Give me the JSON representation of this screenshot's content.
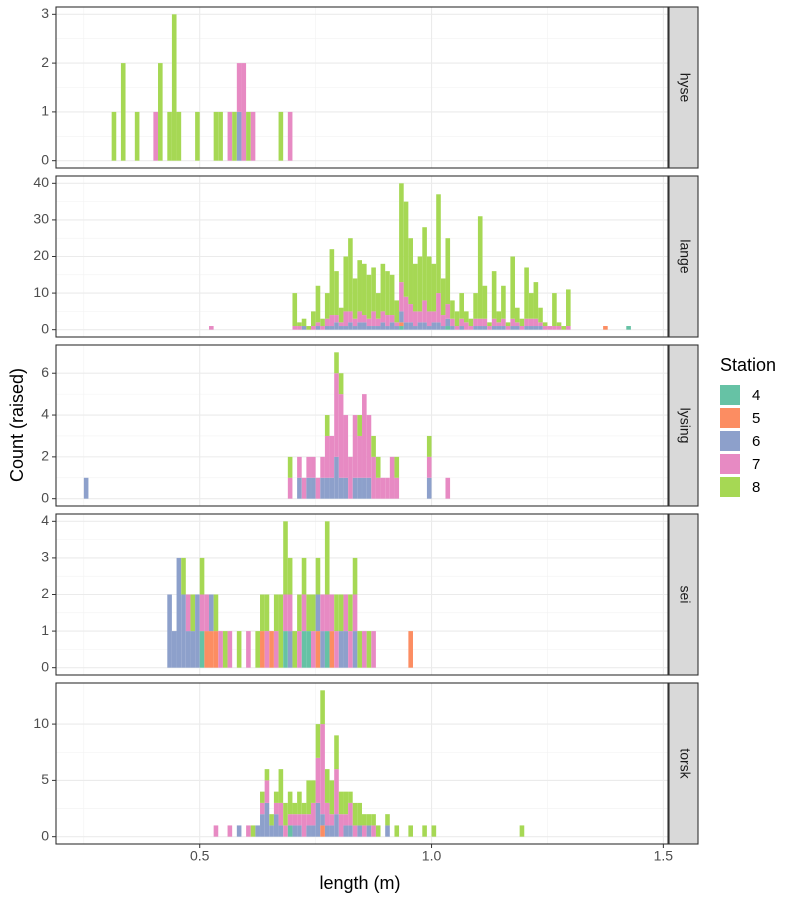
{
  "chart_data": {
    "type": "stacked-histogram",
    "x_label": "length (m)",
    "y_label": "Count (raised)",
    "legend_title": "Station",
    "legend_position": "right",
    "grid": true,
    "xlim": [
      0.19,
      1.51
    ],
    "xticks": [
      0.5,
      {
        "value": 1,
        "label": "1.0"
      },
      1.5
    ],
    "series": [
      {
        "name": "4",
        "color": "#66c2a5"
      },
      {
        "name": "5",
        "color": "#fc8d62"
      },
      {
        "name": "6",
        "color": "#8da0cb"
      },
      {
        "name": "7",
        "color": "#e78ac3"
      },
      {
        "name": "8",
        "color": "#a6d854"
      }
    ],
    "facets": [
      {
        "label": "hyse",
        "ylim": [
          -0.15,
          3.15
        ],
        "yticks": [
          0,
          1,
          2,
          3
        ],
        "x": [
          0.315,
          0.335,
          0.365,
          0.405,
          0.415,
          0.435,
          0.445,
          0.455,
          0.495,
          0.535,
          0.545,
          0.565,
          0.575,
          0.585,
          0.595,
          0.605,
          0.615,
          0.675,
          0.695
        ],
        "values": [
          [
            0,
            0,
            0,
            0,
            0,
            0,
            0,
            0,
            0,
            0,
            0,
            0,
            0,
            0,
            0,
            0,
            0,
            0,
            0
          ],
          [
            0,
            0,
            0,
            0,
            0,
            0,
            0,
            0,
            0,
            0,
            0,
            0,
            0,
            0,
            0,
            0,
            0,
            0,
            0
          ],
          [
            0,
            0,
            0,
            0,
            0,
            0,
            0,
            0,
            0,
            0,
            0,
            0,
            0,
            1,
            0,
            0,
            0,
            0,
            0
          ],
          [
            0,
            0,
            0,
            1,
            0,
            0,
            0,
            0,
            0,
            0,
            0,
            1,
            0,
            1,
            2,
            0,
            1,
            0,
            1
          ],
          [
            1,
            2,
            1,
            0,
            2,
            1,
            3,
            1,
            1,
            1,
            1,
            0,
            1,
            0,
            0,
            1,
            0,
            1,
            0
          ]
        ]
      },
      {
        "label": "lange",
        "ylim": [
          -2,
          42
        ],
        "yticks": [
          0,
          10,
          20,
          30,
          40
        ],
        "x": [
          0.525,
          0.705,
          0.715,
          0.725,
          0.735,
          0.745,
          0.755,
          0.765,
          0.775,
          0.785,
          0.795,
          0.805,
          0.815,
          0.825,
          0.835,
          0.845,
          0.855,
          0.865,
          0.875,
          0.885,
          0.895,
          0.905,
          0.915,
          0.925,
          0.935,
          0.945,
          0.955,
          0.965,
          0.975,
          0.985,
          0.995,
          1.005,
          1.015,
          1.025,
          1.035,
          1.045,
          1.055,
          1.065,
          1.075,
          1.085,
          1.095,
          1.105,
          1.115,
          1.125,
          1.135,
          1.145,
          1.155,
          1.165,
          1.175,
          1.185,
          1.195,
          1.205,
          1.215,
          1.225,
          1.235,
          1.245,
          1.255,
          1.265,
          1.275,
          1.285,
          1.295,
          1.375,
          1.425
        ],
        "values": [
          [
            0,
            0,
            0,
            0,
            0,
            0,
            0,
            0,
            0,
            0,
            0,
            0,
            0,
            0,
            0,
            0,
            0,
            0,
            0,
            0,
            0,
            0,
            0,
            0,
            1,
            0,
            0,
            0,
            0,
            0,
            0,
            0,
            0,
            0,
            1,
            0,
            0,
            0,
            0,
            0,
            0,
            0,
            0,
            0,
            0,
            0,
            0,
            0,
            0,
            0,
            0,
            0,
            0,
            0,
            0,
            0,
            0,
            0,
            0,
            0,
            0,
            0,
            1
          ],
          [
            0,
            0,
            0,
            0,
            0,
            0,
            0,
            0,
            0,
            0,
            0,
            0,
            0,
            0,
            0,
            0,
            0,
            0,
            0,
            0,
            0,
            0,
            0,
            0,
            1,
            0,
            0,
            0,
            0,
            0,
            0,
            0,
            0,
            0,
            0,
            0,
            0,
            0,
            0,
            0,
            0,
            0,
            0,
            0,
            0,
            0,
            0,
            0,
            0,
            0,
            0,
            0,
            0,
            0,
            0,
            0,
            0,
            0,
            0,
            0,
            0,
            1,
            0
          ],
          [
            0,
            0,
            0,
            1,
            0,
            0,
            1,
            0,
            1,
            1,
            2,
            1,
            1,
            2,
            1,
            2,
            2,
            1,
            1,
            1,
            2,
            1,
            2,
            1,
            3,
            2,
            2,
            1,
            2,
            2,
            1,
            2,
            2,
            1,
            2,
            1,
            0,
            1,
            0,
            0,
            1,
            1,
            1,
            0,
            1,
            1,
            1,
            0,
            1,
            1,
            0,
            1,
            1,
            1,
            1,
            0,
            0,
            0,
            0,
            0,
            0,
            0,
            0
          ],
          [
            1,
            1,
            1,
            0,
            0,
            1,
            1,
            1,
            2,
            3,
            2,
            1,
            4,
            3,
            2,
            3,
            2,
            2,
            4,
            2,
            3,
            3,
            2,
            1,
            8,
            7,
            5,
            4,
            3,
            6,
            4,
            3,
            8,
            3,
            4,
            2,
            1,
            2,
            2,
            1,
            2,
            2,
            2,
            1,
            2,
            1,
            2,
            1,
            2,
            1,
            1,
            2,
            2,
            2,
            1,
            1,
            1,
            1,
            1,
            0,
            1,
            0,
            0
          ],
          [
            0,
            9,
            1,
            2,
            1,
            4,
            10,
            2,
            7,
            18,
            12,
            4,
            15,
            20,
            11,
            14,
            14,
            12,
            12,
            7,
            13,
            12,
            11,
            6,
            27,
            26,
            18,
            13,
            15,
            20,
            15,
            13,
            27,
            10,
            18,
            5,
            4,
            7,
            3,
            2,
            7,
            28,
            9,
            1,
            13,
            3,
            9,
            1,
            17,
            4,
            2,
            14,
            7,
            10,
            4,
            1,
            0,
            9,
            1,
            1,
            10,
            0,
            0
          ]
        ]
      },
      {
        "label": "lysing",
        "ylim": [
          -0.35,
          7.35
        ],
        "yticks": [
          0,
          2,
          4,
          6
        ],
        "x": [
          0.255,
          0.695,
          0.715,
          0.725,
          0.735,
          0.745,
          0.755,
          0.765,
          0.775,
          0.785,
          0.795,
          0.805,
          0.815,
          0.825,
          0.835,
          0.845,
          0.855,
          0.865,
          0.875,
          0.885,
          0.895,
          0.905,
          0.915,
          0.925,
          0.995,
          1.035
        ],
        "values": [
          [
            0,
            0,
            0,
            0,
            0,
            0,
            0,
            0,
            0,
            0,
            0,
            0,
            0,
            0,
            0,
            0,
            0,
            0,
            0,
            0,
            0,
            0,
            0,
            0,
            0,
            0
          ],
          [
            0,
            0,
            0,
            0,
            0,
            0,
            0,
            0,
            0,
            0,
            0,
            0,
            0,
            0,
            0,
            0,
            0,
            0,
            0,
            0,
            0,
            0,
            0,
            0,
            0,
            0
          ],
          [
            1,
            0,
            1,
            0,
            1,
            1,
            0,
            1,
            1,
            1,
            2,
            1,
            1,
            0,
            1,
            1,
            1,
            1,
            0,
            0,
            0,
            0,
            0,
            0,
            1,
            0
          ],
          [
            0,
            1,
            1,
            1,
            1,
            1,
            1,
            1,
            2,
            2,
            4,
            4,
            3,
            2,
            3,
            2,
            4,
            3,
            2,
            1,
            1,
            1,
            2,
            1,
            1,
            1
          ],
          [
            0,
            1,
            0,
            0,
            0,
            0,
            0,
            0,
            1,
            0,
            1,
            1,
            0,
            0,
            0,
            1,
            0,
            0,
            1,
            1,
            0,
            0,
            0,
            1,
            1,
            0
          ]
        ]
      },
      {
        "label": "sei",
        "ylim": [
          -0.2,
          4.2
        ],
        "yticks": [
          0,
          1,
          2,
          3,
          4
        ],
        "x": [
          0.435,
          0.445,
          0.455,
          0.465,
          0.475,
          0.485,
          0.495,
          0.505,
          0.515,
          0.525,
          0.535,
          0.545,
          0.555,
          0.565,
          0.585,
          0.605,
          0.625,
          0.635,
          0.645,
          0.655,
          0.665,
          0.675,
          0.685,
          0.695,
          0.705,
          0.715,
          0.725,
          0.735,
          0.745,
          0.755,
          0.765,
          0.775,
          0.785,
          0.795,
          0.805,
          0.815,
          0.825,
          0.835,
          0.845,
          0.855,
          0.865,
          0.875,
          0.955
        ],
        "values": [
          [
            0,
            0,
            0,
            0,
            0,
            0,
            0,
            1,
            0,
            0,
            0,
            0,
            0,
            0,
            0,
            0,
            0,
            0,
            0,
            0,
            0,
            0,
            1,
            0,
            0,
            0,
            1,
            1,
            0,
            0,
            0,
            1,
            0,
            0,
            0,
            0,
            0,
            0,
            0,
            0,
            0,
            0,
            0
          ],
          [
            0,
            0,
            0,
            0,
            0,
            0,
            0,
            0,
            1,
            1,
            1,
            0,
            0,
            0,
            0,
            0,
            0,
            1,
            0,
            1,
            0,
            0,
            0,
            0,
            0,
            0,
            0,
            0,
            0,
            1,
            0,
            0,
            1,
            0,
            0,
            0,
            0,
            0,
            0,
            0,
            0,
            0,
            1
          ],
          [
            2,
            1,
            3,
            2,
            1,
            1,
            2,
            0,
            0,
            1,
            0,
            0,
            0,
            0,
            0,
            0,
            0,
            0,
            0,
            0,
            0,
            0,
            0,
            1,
            0,
            0,
            0,
            0,
            0,
            1,
            1,
            0,
            0,
            0,
            1,
            1,
            0,
            1,
            0,
            0,
            0,
            0,
            0
          ],
          [
            0,
            0,
            0,
            0,
            1,
            0,
            0,
            1,
            1,
            0,
            0,
            1,
            0,
            1,
            0,
            1,
            0,
            0,
            1,
            0,
            1,
            0,
            1,
            1,
            0,
            1,
            1,
            0,
            1,
            0,
            1,
            1,
            1,
            1,
            0,
            1,
            1,
            1,
            0,
            1,
            0,
            1,
            0
          ],
          [
            0,
            0,
            0,
            1,
            0,
            1,
            0,
            1,
            0,
            0,
            1,
            0,
            1,
            0,
            1,
            0,
            1,
            1,
            1,
            0,
            1,
            2,
            2,
            1,
            1,
            1,
            1,
            1,
            1,
            1,
            0,
            2,
            0,
            1,
            1,
            0,
            1,
            1,
            1,
            0,
            1,
            0,
            0
          ]
        ]
      },
      {
        "label": "torsk",
        "ylim": [
          -0.65,
          13.65
        ],
        "yticks": [
          0,
          5,
          10
        ],
        "x": [
          0.535,
          0.565,
          0.585,
          0.605,
          0.615,
          0.625,
          0.635,
          0.645,
          0.655,
          0.665,
          0.675,
          0.685,
          0.695,
          0.705,
          0.715,
          0.725,
          0.735,
          0.745,
          0.755,
          0.765,
          0.775,
          0.785,
          0.795,
          0.805,
          0.815,
          0.825,
          0.835,
          0.845,
          0.855,
          0.865,
          0.875,
          0.885,
          0.905,
          0.925,
          0.955,
          0.985,
          1.005,
          1.195
        ],
        "values": [
          [
            0,
            0,
            0,
            0,
            0,
            0,
            0,
            0,
            0,
            0,
            0,
            0,
            1,
            0,
            0,
            0,
            0,
            0,
            0,
            0,
            0,
            0,
            0,
            0,
            0,
            0,
            0,
            0,
            0,
            0,
            0,
            0,
            0,
            0,
            0,
            0,
            0,
            0
          ],
          [
            0,
            0,
            0,
            0,
            0,
            0,
            0,
            0,
            0,
            0,
            0,
            0,
            0,
            0,
            0,
            0,
            0,
            0,
            0,
            1,
            0,
            0,
            0,
            0,
            0,
            0,
            0,
            0,
            0,
            0,
            0,
            0,
            0,
            0,
            0,
            0,
            0,
            0
          ],
          [
            0,
            0,
            1,
            0,
            0,
            1,
            2,
            3,
            1,
            2,
            1,
            0,
            0,
            1,
            1,
            0,
            1,
            1,
            3,
            1,
            1,
            1,
            2,
            0,
            1,
            1,
            0,
            1,
            0,
            1,
            0,
            0,
            1,
            0,
            0,
            0,
            0,
            0
          ],
          [
            1,
            1,
            0,
            1,
            0,
            0,
            1,
            2,
            0,
            1,
            2,
            1,
            1,
            1,
            1,
            2,
            1,
            2,
            4,
            8,
            2,
            1,
            4,
            2,
            1,
            2,
            1,
            0,
            1,
            0,
            1,
            0,
            0,
            0,
            0,
            0,
            0,
            0
          ],
          [
            0,
            0,
            0,
            0,
            1,
            0,
            1,
            1,
            1,
            1,
            3,
            2,
            2,
            1,
            2,
            1,
            3,
            2,
            3,
            3,
            3,
            3,
            3,
            2,
            2,
            1,
            2,
            2,
            1,
            1,
            1,
            1,
            1,
            1,
            1,
            1,
            1,
            1
          ]
        ]
      }
    ]
  }
}
